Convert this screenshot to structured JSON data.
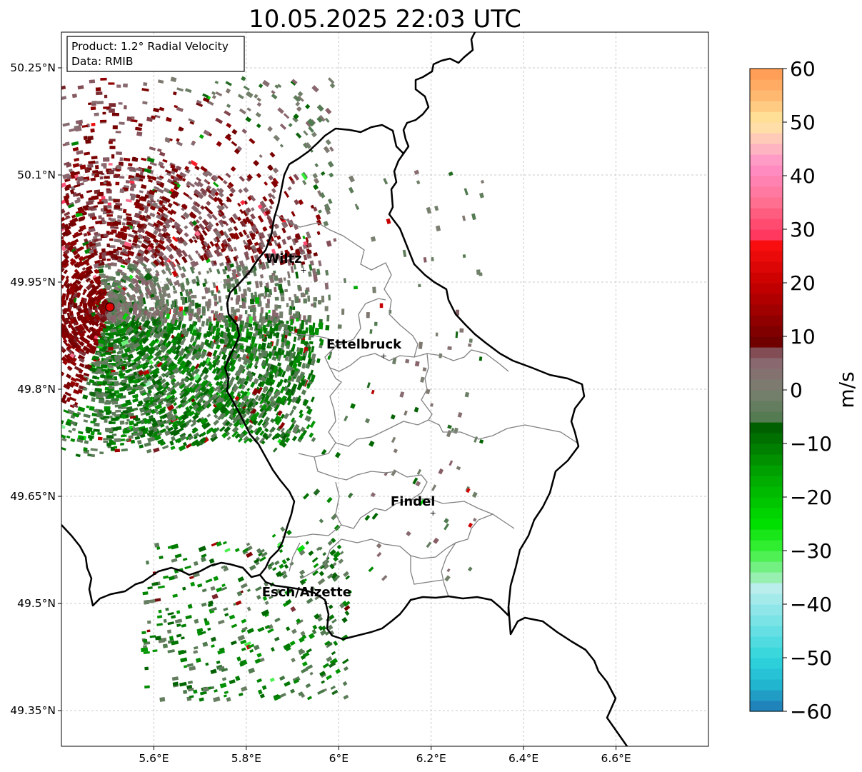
{
  "title": "10.05.2025 22:03 UTC",
  "info_box": {
    "line1": "Product: 1.2° Radial Velocity",
    "line2": "Data: RMIB"
  },
  "axes": {
    "y_ticks": [
      {
        "value": 50.25,
        "label": "50.25°N"
      },
      {
        "value": 50.1,
        "label": "50.1°N"
      },
      {
        "value": 49.95,
        "label": "49.95°N"
      },
      {
        "value": 49.8,
        "label": "49.8°N"
      },
      {
        "value": 49.65,
        "label": "49.65°N"
      },
      {
        "value": 49.5,
        "label": "49.5°N"
      },
      {
        "value": 49.35,
        "label": "49.35°N"
      }
    ],
    "x_ticks": [
      {
        "value": 5.6,
        "label": "5.6°E"
      },
      {
        "value": 5.8,
        "label": "5.8°E"
      },
      {
        "value": 6.0,
        "label": "6°E"
      },
      {
        "value": 6.2,
        "label": "6.2°E"
      },
      {
        "value": 6.4,
        "label": "6.4°E"
      },
      {
        "value": 6.6,
        "label": "6.6°E"
      }
    ],
    "lon_range": [
      5.4,
      6.8
    ],
    "lat_range": [
      49.3,
      50.3
    ],
    "grid": true
  },
  "cities": [
    {
      "name": "Wiltz",
      "lon": 5.93,
      "lat": 49.967
    },
    {
      "name": "Ettelbruck",
      "lon": 6.104,
      "lat": 49.847
    },
    {
      "name": "Findel",
      "lon": 6.21,
      "lat": 49.627
    },
    {
      "name": "Esch/Alzette",
      "lon": 5.98,
      "lat": 49.5
    }
  ],
  "radar_site": {
    "lon": 5.505,
    "lat": 49.915,
    "color": "#e00000"
  },
  "colorbar": {
    "label": "m/s",
    "min": -60,
    "max": 60,
    "ticks": [
      {
        "value": 60,
        "label": "60"
      },
      {
        "value": 50,
        "label": "50"
      },
      {
        "value": 40,
        "label": "40"
      },
      {
        "value": 30,
        "label": "30"
      },
      {
        "value": 20,
        "label": "20"
      },
      {
        "value": 10,
        "label": "10"
      },
      {
        "value": 0,
        "label": "0"
      },
      {
        "value": -10,
        "label": "−10"
      },
      {
        "value": -20,
        "label": "−20"
      },
      {
        "value": -30,
        "label": "−30"
      },
      {
        "value": -40,
        "label": "−40"
      },
      {
        "value": -50,
        "label": "−50"
      },
      {
        "value": -60,
        "label": "−60"
      }
    ],
    "stops": [
      {
        "v": -60,
        "c": "#1f77b4"
      },
      {
        "v": -55,
        "c": "#22b5d0"
      },
      {
        "v": -50,
        "c": "#2fd6dc"
      },
      {
        "v": -40,
        "c": "#9ae8ea"
      },
      {
        "v": -36,
        "c": "#c4f0ec"
      },
      {
        "v": -35,
        "c": "#98f0b0"
      },
      {
        "v": -30,
        "c": "#3cf03c"
      },
      {
        "v": -25,
        "c": "#00e000"
      },
      {
        "v": -15,
        "c": "#00a000"
      },
      {
        "v": -7,
        "c": "#006000"
      },
      {
        "v": -6,
        "c": "#4d7a4d"
      },
      {
        "v": 0,
        "c": "#7a8070"
      },
      {
        "v": 5,
        "c": "#8a6870"
      },
      {
        "v": 8,
        "c": "#804048"
      },
      {
        "v": 9,
        "c": "#700000"
      },
      {
        "v": 20,
        "c": "#c80000"
      },
      {
        "v": 28,
        "c": "#ff1010"
      },
      {
        "v": 29,
        "c": "#ff3860"
      },
      {
        "v": 35,
        "c": "#ff7090"
      },
      {
        "v": 42,
        "c": "#ff90c8"
      },
      {
        "v": 46,
        "c": "#ffc0c0"
      },
      {
        "v": 50,
        "c": "#ffe8a0"
      },
      {
        "v": 55,
        "c": "#ffb870"
      },
      {
        "v": 60,
        "c": "#ff9850"
      }
    ]
  },
  "colors": {
    "border_country": "#000000",
    "border_canton": "#808080",
    "grid": "#bbbbbb"
  }
}
